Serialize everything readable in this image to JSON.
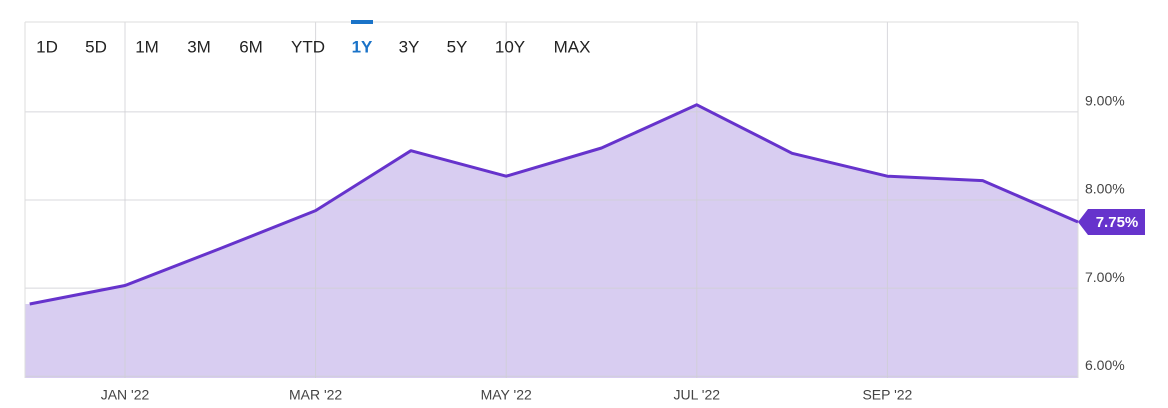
{
  "chart_data": {
    "type": "area",
    "range_options": [
      "1D",
      "5D",
      "1M",
      "3M",
      "6M",
      "YTD",
      "1Y",
      "3Y",
      "5Y",
      "10Y",
      "MAX"
    ],
    "active_range_index": 6,
    "categories": [
      null,
      "JAN '22",
      null,
      "MAR '22",
      null,
      "MAY '22",
      null,
      "JUL '22",
      null,
      "SEP '22",
      null,
      null
    ],
    "values": [
      6.82,
      7.03,
      7.45,
      7.88,
      8.56,
      8.27,
      8.59,
      9.08,
      8.53,
      8.27,
      8.22,
      7.75
    ],
    "value_labels": [
      null,
      null,
      null,
      null,
      null,
      null,
      null,
      null,
      null,
      null,
      null,
      "7.75%"
    ],
    "color": "#6633cc",
    "fill": "#d8cdf1",
    "ylim": [
      5.98,
      10.02
    ],
    "yticks": [
      {
        "value": 6,
        "label": "6.00%"
      },
      {
        "value": 7,
        "label": "7.00%"
      },
      {
        "value": 8,
        "label": "8.00%"
      },
      {
        "value": 9,
        "label": "9.00%"
      }
    ],
    "grid": true
  }
}
